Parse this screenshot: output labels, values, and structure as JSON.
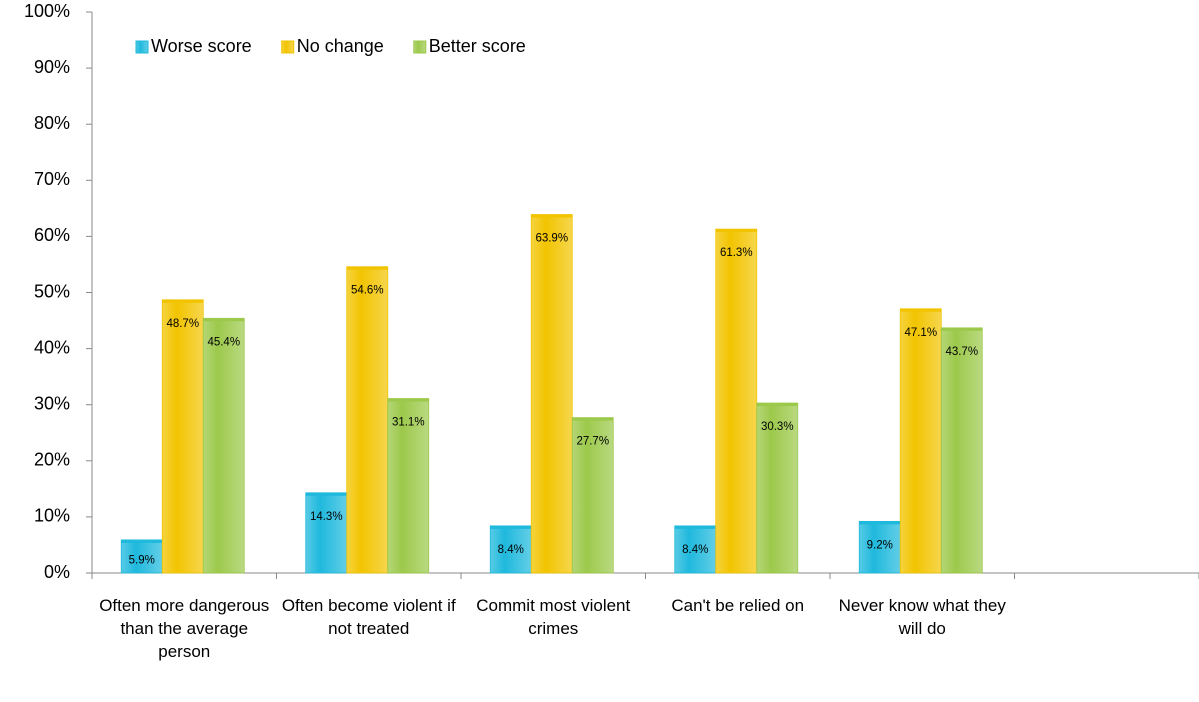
{
  "chart_data": {
    "type": "bar",
    "categories": [
      "Often more dangerous than the average person",
      "Often become violent if not treated",
      "Commit most violent crimes",
      "Can't be relied on",
      "Never know what they will do",
      null
    ],
    "series": [
      {
        "name": "Worse score",
        "color": "#1fb9dd",
        "values": [
          5.9,
          14.3,
          8.4,
          8.4,
          9.2,
          null
        ],
        "value_labels": [
          "5.9%",
          "14.3%",
          "8.4%",
          "8.4%",
          "9.2%",
          null
        ]
      },
      {
        "name": "No change",
        "color": "#f2c400",
        "values": [
          48.7,
          54.6,
          63.9,
          61.3,
          47.1,
          null
        ],
        "value_labels": [
          "48.7%",
          "54.6%",
          "63.9%",
          "61.3%",
          "47.1%",
          null
        ]
      },
      {
        "name": "Better score",
        "color": "#9cc94b",
        "values": [
          45.4,
          31.1,
          27.7,
          30.3,
          43.7,
          null
        ],
        "value_labels": [
          "45.4%",
          "31.1%",
          "27.7%",
          "30.3%",
          "43.7%",
          null
        ]
      }
    ],
    "ylim": [
      0,
      100
    ],
    "yticks": [
      {
        "value": 0,
        "label": "0%"
      },
      {
        "value": 10,
        "label": "10%"
      },
      {
        "value": 20,
        "label": "20%"
      },
      {
        "value": 30,
        "label": "30%"
      },
      {
        "value": 40,
        "label": "40%"
      },
      {
        "value": 50,
        "label": "50%"
      },
      {
        "value": 60,
        "label": "60%"
      },
      {
        "value": 70,
        "label": "70%"
      },
      {
        "value": 80,
        "label": "80%"
      },
      {
        "value": 90,
        "label": "90%"
      },
      {
        "value": 100,
        "label": "100%"
      }
    ],
    "grid": false,
    "legend": "upper left"
  }
}
